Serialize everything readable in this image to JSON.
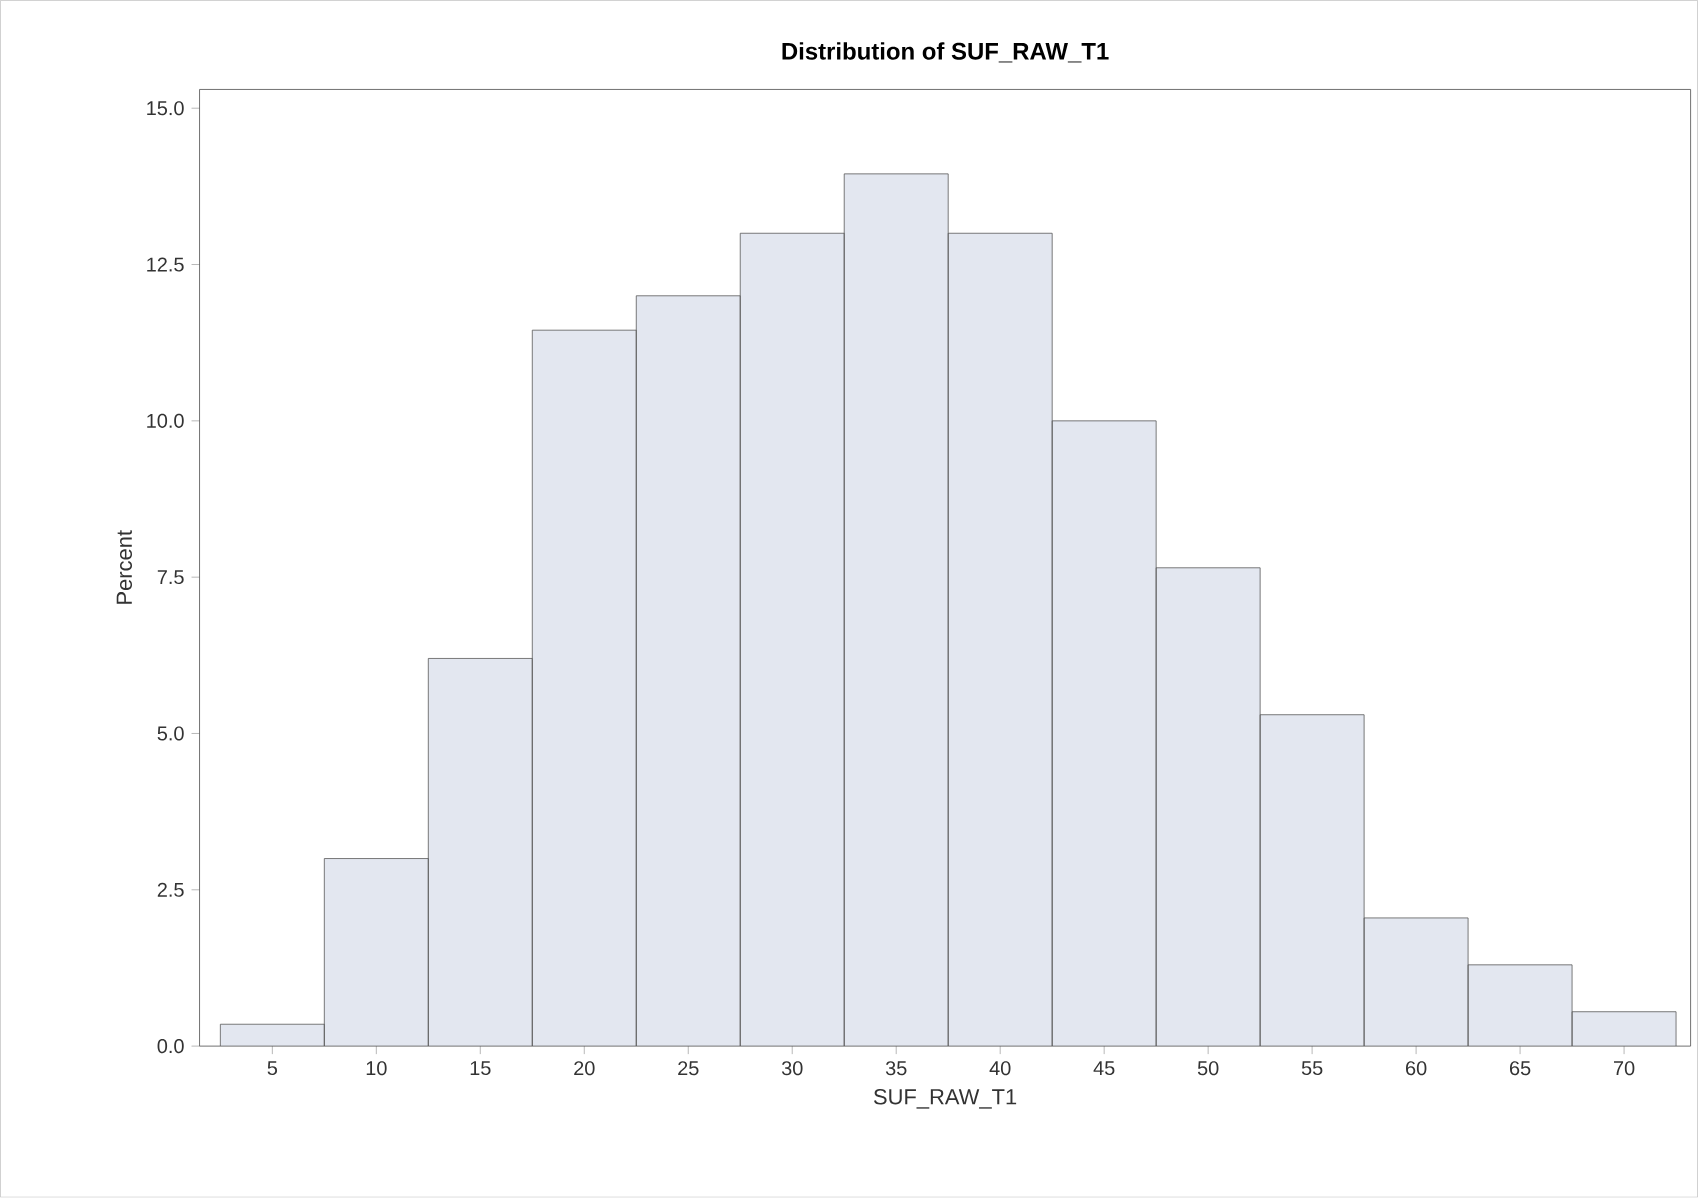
{
  "chart_data": {
    "type": "histogram",
    "title": "Distribution of SUF_RAW_T1",
    "xlabel": "SUF_RAW_T1",
    "ylabel": "Percent",
    "bins": [
      2.5,
      7.5,
      12.5,
      17.5,
      22.5,
      27.5,
      32.5,
      37.5,
      42.5,
      47.5,
      52.5,
      57.5,
      62.5,
      67.5,
      72.5
    ],
    "values": [
      0.35,
      3.0,
      6.2,
      11.45,
      12.0,
      13.0,
      13.95,
      13.0,
      10.0,
      7.65,
      5.3,
      2.05,
      1.3,
      0.55
    ],
    "color": "#e3e7f0",
    "xlim": [
      1.5,
      73.2
    ],
    "xticks": [
      5,
      10,
      15,
      20,
      25,
      30,
      35,
      40,
      45,
      50,
      55,
      60,
      65,
      70
    ],
    "grid": false,
    "ylim": [
      0,
      15.3
    ],
    "yticks": [
      {
        "value": 0,
        "label": "0.0"
      },
      {
        "value": 2.5,
        "label": "2.5"
      },
      {
        "value": 5,
        "label": "5.0"
      },
      {
        "value": 7.5,
        "label": "7.5"
      },
      {
        "value": 10,
        "label": "10.0"
      },
      {
        "value": 12.5,
        "label": "12.5"
      },
      {
        "value": 15,
        "label": "15.0"
      }
    ],
    "legend": false
  }
}
